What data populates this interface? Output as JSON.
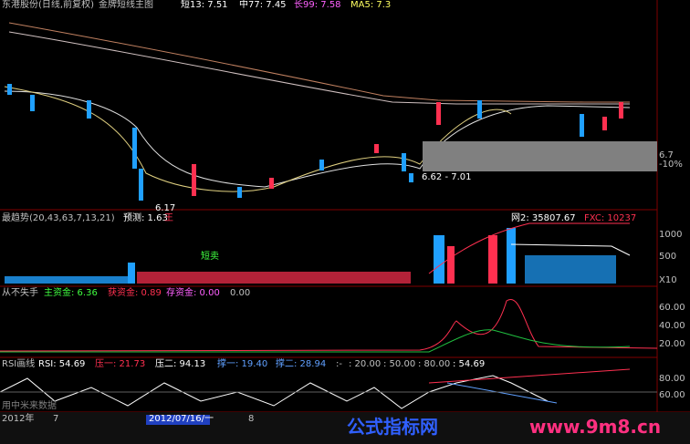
{
  "header": {
    "stock": "东港股份(日线,前复权)",
    "template": "金牌短线主图",
    "short": "短13: 7.51",
    "mid": "中77: 7.45",
    "long": "长99: 7.58",
    "ma5": "MA5: 7.3"
  },
  "main_panel": {
    "axis": [
      "6.7",
      "-10%"
    ],
    "annotations": [
      "6.62 - 7.01",
      "6.17"
    ]
  },
  "trend_panel": {
    "title": "最趋势(20,43,63,7,13,21)",
    "forecast": "预测: 1.63",
    "king": "王",
    "net2": "网2: 35807.67",
    "fxc": "FXC: 10237",
    "signal": "短卖",
    "axis": [
      "1000",
      "500"
    ],
    "scale": "X10"
  },
  "fund_panel": {
    "title": "从不失手",
    "main": "主资金: 6.36",
    "gain": "获资金: 0.89",
    "stock": "存资金: 0.00",
    "extra": "0.00",
    "axis": [
      "60.00",
      "40.00",
      "20.00"
    ]
  },
  "rsi_panel": {
    "title": "RSI画线",
    "rsi": "RSI: 54.69",
    "p1": "压一: 21.73",
    "p2": "压二: 94.13",
    "s1": "撑一: 19.40",
    "s2": "撑二: 28.94",
    "l0": ":-",
    "l1": ": 20.00",
    "l2": ": 50.00",
    "l3": ": 80.00",
    "l4": ": 54.69",
    "axis": [
      "80.00",
      "60.00"
    ],
    "source": "用中米来数据"
  },
  "footer": {
    "year": "2012年",
    "month7": "7",
    "date": "2012/07/16/一",
    "month8": "8",
    "brand": "公式指标网",
    "url": "www.9m8.cn"
  }
}
